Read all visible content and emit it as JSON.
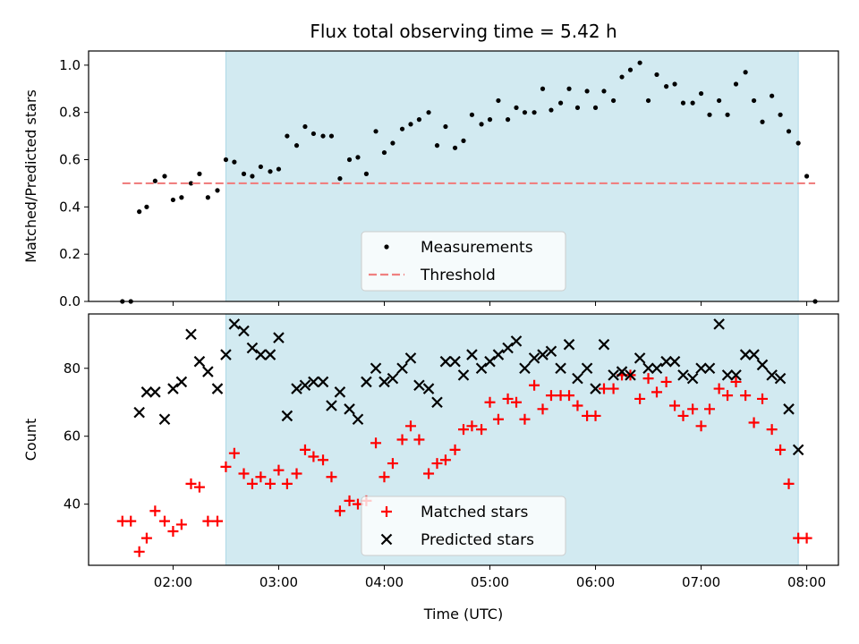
{
  "figure": {
    "title": "Flux total observing time = 5.42 h",
    "xlabel": "Time (UTC)",
    "x_ticks": [
      {
        "value": 2.0,
        "label": "02:00"
      },
      {
        "value": 3.0,
        "label": "03:00"
      },
      {
        "value": 4.0,
        "label": "04:00"
      },
      {
        "value": 5.0,
        "label": "05:00"
      },
      {
        "value": 6.0,
        "label": "06:00"
      },
      {
        "value": 7.0,
        "label": "07:00"
      },
      {
        "value": 8.0,
        "label": "08:00"
      }
    ],
    "xlim": [
      1.2,
      8.3
    ],
    "shaded_span": [
      2.5,
      7.92
    ],
    "shade_color": "#add8e6"
  },
  "chart_data": [
    {
      "type": "scatter",
      "ylabel": "Matched/Predicted stars",
      "ylim": [
        0,
        1.06
      ],
      "y_ticks": [
        {
          "value": 0.0,
          "label": "0.0"
        },
        {
          "value": 0.2,
          "label": "0.2"
        },
        {
          "value": 0.4,
          "label": "0.4"
        },
        {
          "value": 0.6,
          "label": "0.6"
        },
        {
          "value": 0.8,
          "label": "0.8"
        },
        {
          "value": 1.0,
          "label": "1.0"
        }
      ],
      "legend_position": "lower-center",
      "series": [
        {
          "name": "Measurements",
          "marker": "dot",
          "color": "#000000",
          "points": [
            [
              1.52,
              0.0
            ],
            [
              1.6,
              0.0
            ],
            [
              1.68,
              0.38
            ],
            [
              1.75,
              0.4
            ],
            [
              1.83,
              0.51
            ],
            [
              1.92,
              0.53
            ],
            [
              2.0,
              0.43
            ],
            [
              2.08,
              0.44
            ],
            [
              2.17,
              0.5
            ],
            [
              2.25,
              0.54
            ],
            [
              2.33,
              0.44
            ],
            [
              2.42,
              0.47
            ],
            [
              2.5,
              0.6
            ],
            [
              2.58,
              0.59
            ],
            [
              2.67,
              0.54
            ],
            [
              2.75,
              0.53
            ],
            [
              2.83,
              0.57
            ],
            [
              2.92,
              0.55
            ],
            [
              3.0,
              0.56
            ],
            [
              3.08,
              0.7
            ],
            [
              3.17,
              0.66
            ],
            [
              3.25,
              0.74
            ],
            [
              3.33,
              0.71
            ],
            [
              3.42,
              0.7
            ],
            [
              3.5,
              0.7
            ],
            [
              3.58,
              0.52
            ],
            [
              3.67,
              0.6
            ],
            [
              3.75,
              0.61
            ],
            [
              3.83,
              0.54
            ],
            [
              3.92,
              0.72
            ],
            [
              4.0,
              0.63
            ],
            [
              4.08,
              0.67
            ],
            [
              4.17,
              0.73
            ],
            [
              4.25,
              0.75
            ],
            [
              4.33,
              0.77
            ],
            [
              4.42,
              0.8
            ],
            [
              4.5,
              0.66
            ],
            [
              4.58,
              0.74
            ],
            [
              4.67,
              0.65
            ],
            [
              4.75,
              0.68
            ],
            [
              4.83,
              0.79
            ],
            [
              4.92,
              0.75
            ],
            [
              5.0,
              0.77
            ],
            [
              5.08,
              0.85
            ],
            [
              5.17,
              0.77
            ],
            [
              5.25,
              0.82
            ],
            [
              5.33,
              0.8
            ],
            [
              5.42,
              0.8
            ],
            [
              5.5,
              0.9
            ],
            [
              5.58,
              0.81
            ],
            [
              5.67,
              0.84
            ],
            [
              5.75,
              0.9
            ],
            [
              5.83,
              0.82
            ],
            [
              5.92,
              0.89
            ],
            [
              6.0,
              0.82
            ],
            [
              6.08,
              0.89
            ],
            [
              6.17,
              0.85
            ],
            [
              6.25,
              0.95
            ],
            [
              6.33,
              0.98
            ],
            [
              6.42,
              1.01
            ],
            [
              6.5,
              0.85
            ],
            [
              6.58,
              0.96
            ],
            [
              6.67,
              0.91
            ],
            [
              6.75,
              0.92
            ],
            [
              6.83,
              0.84
            ],
            [
              6.92,
              0.84
            ],
            [
              7.0,
              0.88
            ],
            [
              7.08,
              0.79
            ],
            [
              7.17,
              0.85
            ],
            [
              7.25,
              0.79
            ],
            [
              7.33,
              0.92
            ],
            [
              7.42,
              0.97
            ],
            [
              7.5,
              0.85
            ],
            [
              7.58,
              0.76
            ],
            [
              7.67,
              0.87
            ],
            [
              7.75,
              0.79
            ],
            [
              7.83,
              0.72
            ],
            [
              7.92,
              0.67
            ],
            [
              8.0,
              0.53
            ],
            [
              8.08,
              0.0
            ]
          ]
        },
        {
          "name": "Threshold",
          "marker": "dashed-line",
          "color": "#f08080",
          "points": [
            [
              1.52,
              0.5
            ],
            [
              8.08,
              0.5
            ]
          ]
        }
      ]
    },
    {
      "type": "scatter",
      "ylabel": "Count",
      "ylim": [
        22,
        96
      ],
      "y_ticks": [
        {
          "value": 40,
          "label": "40"
        },
        {
          "value": 60,
          "label": "60"
        },
        {
          "value": 80,
          "label": "80"
        }
      ],
      "legend_position": "lower-center",
      "series": [
        {
          "name": "Matched stars",
          "marker": "plus",
          "color": "#ff0000",
          "points": [
            [
              1.52,
              35
            ],
            [
              1.6,
              35
            ],
            [
              1.68,
              26
            ],
            [
              1.75,
              30
            ],
            [
              1.83,
              38
            ],
            [
              1.92,
              35
            ],
            [
              2.0,
              32
            ],
            [
              2.08,
              34
            ],
            [
              2.17,
              46
            ],
            [
              2.25,
              45
            ],
            [
              2.33,
              35
            ],
            [
              2.42,
              35
            ],
            [
              2.5,
              51
            ],
            [
              2.58,
              55
            ],
            [
              2.67,
              49
            ],
            [
              2.75,
              46
            ],
            [
              2.83,
              48
            ],
            [
              2.92,
              46
            ],
            [
              3.0,
              50
            ],
            [
              3.08,
              46
            ],
            [
              3.17,
              49
            ],
            [
              3.25,
              56
            ],
            [
              3.33,
              54
            ],
            [
              3.42,
              53
            ],
            [
              3.5,
              48
            ],
            [
              3.58,
              38
            ],
            [
              3.67,
              41
            ],
            [
              3.75,
              40
            ],
            [
              3.83,
              41
            ],
            [
              3.92,
              58
            ],
            [
              4.0,
              48
            ],
            [
              4.08,
              52
            ],
            [
              4.17,
              59
            ],
            [
              4.25,
              63
            ],
            [
              4.33,
              59
            ],
            [
              4.42,
              49
            ],
            [
              4.5,
              52
            ],
            [
              4.58,
              53
            ],
            [
              4.67,
              56
            ],
            [
              4.75,
              62
            ],
            [
              4.83,
              63
            ],
            [
              4.92,
              62
            ],
            [
              5.0,
              70
            ],
            [
              5.08,
              65
            ],
            [
              5.17,
              71
            ],
            [
              5.25,
              70
            ],
            [
              5.33,
              65
            ],
            [
              5.42,
              75
            ],
            [
              5.5,
              68
            ],
            [
              5.58,
              72
            ],
            [
              5.67,
              72
            ],
            [
              5.75,
              72
            ],
            [
              5.83,
              69
            ],
            [
              5.92,
              66
            ],
            [
              6.0,
              66
            ],
            [
              6.08,
              74
            ],
            [
              6.17,
              74
            ],
            [
              6.25,
              78
            ],
            [
              6.33,
              78
            ],
            [
              6.42,
              71
            ],
            [
              6.5,
              77
            ],
            [
              6.58,
              73
            ],
            [
              6.67,
              76
            ],
            [
              6.75,
              69
            ],
            [
              6.83,
              66
            ],
            [
              6.92,
              68
            ],
            [
              7.0,
              63
            ],
            [
              7.08,
              68
            ],
            [
              7.17,
              74
            ],
            [
              7.25,
              72
            ],
            [
              7.33,
              76
            ],
            [
              7.42,
              72
            ],
            [
              7.5,
              64
            ],
            [
              7.58,
              71
            ],
            [
              7.67,
              62
            ],
            [
              7.75,
              56
            ],
            [
              7.83,
              46
            ],
            [
              7.92,
              30
            ],
            [
              8.0,
              30
            ]
          ]
        },
        {
          "name": "Predicted stars",
          "marker": "x",
          "color": "#000000",
          "points": [
            [
              1.68,
              67
            ],
            [
              1.75,
              73
            ],
            [
              1.83,
              73
            ],
            [
              1.92,
              65
            ],
            [
              2.0,
              74
            ],
            [
              2.08,
              76
            ],
            [
              2.17,
              90
            ],
            [
              2.25,
              82
            ],
            [
              2.33,
              79
            ],
            [
              2.42,
              74
            ],
            [
              2.5,
              84
            ],
            [
              2.58,
              93
            ],
            [
              2.67,
              91
            ],
            [
              2.75,
              86
            ],
            [
              2.83,
              84
            ],
            [
              2.92,
              84
            ],
            [
              3.0,
              89
            ],
            [
              3.08,
              66
            ],
            [
              3.17,
              74
            ],
            [
              3.25,
              75
            ],
            [
              3.33,
              76
            ],
            [
              3.42,
              76
            ],
            [
              3.5,
              69
            ],
            [
              3.58,
              73
            ],
            [
              3.67,
              68
            ],
            [
              3.75,
              65
            ],
            [
              3.83,
              76
            ],
            [
              3.92,
              80
            ],
            [
              4.0,
              76
            ],
            [
              4.08,
              77
            ],
            [
              4.17,
              80
            ],
            [
              4.25,
              83
            ],
            [
              4.33,
              75
            ],
            [
              4.42,
              74
            ],
            [
              4.5,
              70
            ],
            [
              4.58,
              82
            ],
            [
              4.67,
              82
            ],
            [
              4.75,
              78
            ],
            [
              4.83,
              84
            ],
            [
              4.92,
              80
            ],
            [
              5.0,
              82
            ],
            [
              5.08,
              84
            ],
            [
              5.17,
              86
            ],
            [
              5.25,
              88
            ],
            [
              5.33,
              80
            ],
            [
              5.42,
              83
            ],
            [
              5.5,
              84
            ],
            [
              5.58,
              85
            ],
            [
              5.67,
              80
            ],
            [
              5.75,
              87
            ],
            [
              5.83,
              77
            ],
            [
              5.92,
              80
            ],
            [
              6.0,
              74
            ],
            [
              6.08,
              87
            ],
            [
              6.17,
              78
            ],
            [
              6.25,
              79
            ],
            [
              6.33,
              78
            ],
            [
              6.42,
              83
            ],
            [
              6.5,
              80
            ],
            [
              6.58,
              80
            ],
            [
              6.67,
              82
            ],
            [
              6.75,
              82
            ],
            [
              6.83,
              78
            ],
            [
              6.92,
              77
            ],
            [
              7.0,
              80
            ],
            [
              7.08,
              80
            ],
            [
              7.17,
              93
            ],
            [
              7.25,
              78
            ],
            [
              7.33,
              78
            ],
            [
              7.42,
              84
            ],
            [
              7.5,
              84
            ],
            [
              7.58,
              81
            ],
            [
              7.67,
              78
            ],
            [
              7.75,
              77
            ],
            [
              7.83,
              68
            ],
            [
              7.92,
              56
            ]
          ]
        }
      ]
    }
  ]
}
